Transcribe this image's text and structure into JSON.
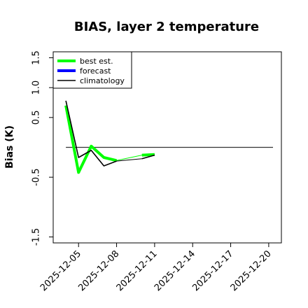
{
  "chart_data": {
    "type": "line",
    "title": "BIAS, layer 2 temperature",
    "ylabel": "Bias (K)",
    "xlabel": "",
    "xlim": [
      "2025-12-03",
      "2025-12-21"
    ],
    "ylim": [
      -1.6,
      1.6
    ],
    "y_ticks": [
      -1.5,
      -0.5,
      0.5,
      1.0,
      1.5
    ],
    "y_tick_labels": [
      "-1.5",
      "-0.5",
      "0.5",
      "1.0",
      "1.5"
    ],
    "x_ticks": [
      "2025-12-05",
      "2025-12-08",
      "2025-12-11",
      "2025-12-14",
      "2025-12-17",
      "2025-12-20"
    ],
    "highlight_tick": "2025-12-11",
    "highlight_color": "#228B22",
    "grid": false,
    "legend_position": "top-left",
    "reference_line": 0,
    "series": [
      {
        "name": "best est.",
        "color": "#00ff00",
        "x": [
          "2025-12-04",
          "2025-12-05",
          "2025-12-06",
          "2025-12-07",
          "2025-12-08",
          "2025-12-09",
          "2025-12-10",
          "2025-12-11"
        ],
        "y": [
          0.7,
          -0.42,
          0.02,
          -0.17,
          -0.22,
          null,
          -0.13,
          -0.12
        ]
      },
      {
        "name": "forecast",
        "color": "#0000ff",
        "x": [],
        "y": []
      },
      {
        "name": "climatology",
        "color": "#000000",
        "x": [
          "2025-12-04",
          "2025-12-05",
          "2025-12-06",
          "2025-12-07",
          "2025-12-08",
          "2025-12-09",
          "2025-12-10",
          "2025-12-11"
        ],
        "y": [
          0.78,
          -0.17,
          -0.05,
          -0.31,
          -0.23,
          null,
          -0.19,
          -0.13
        ]
      }
    ]
  }
}
